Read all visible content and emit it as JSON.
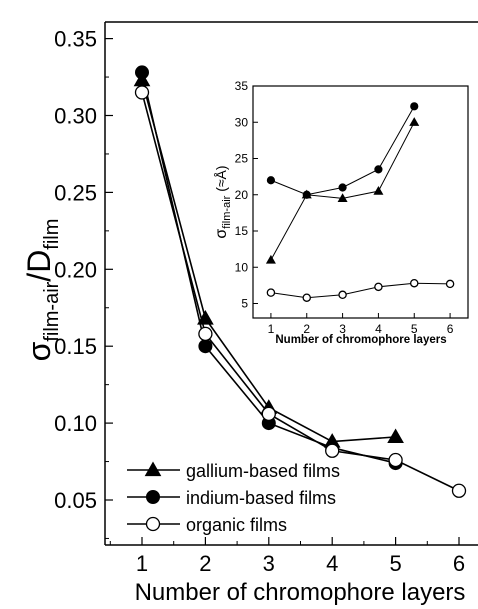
{
  "chart_data": [
    {
      "type": "line",
      "xlabel": "Number of chromophore layers",
      "ylabel_main": "σ",
      "ylabel_sub1": "film-air",
      "ylabel_mid": "/D",
      "ylabel_sub2": "film",
      "xlim": [
        0.3,
        6.3
      ],
      "ylim": [
        0.0167,
        0.35
      ],
      "xticks": [
        1,
        2,
        3,
        4,
        5,
        6
      ],
      "yticks": [
        0.05,
        0.1,
        0.15,
        0.2,
        0.25,
        0.3,
        0.35
      ],
      "ytick_labels": [
        "0.05",
        "0.10",
        "0.15",
        "0.20",
        "0.25",
        "0.30",
        "0.35"
      ],
      "legend_position": "bottom-left",
      "series": [
        {
          "name": "gallium-based films",
          "marker": "triangle",
          "x": [
            1,
            2,
            3,
            4,
            5
          ],
          "y": [
            0.323,
            0.168,
            0.11,
            0.088,
            0.091
          ]
        },
        {
          "name": "indium-based films",
          "marker": "filled-circle",
          "x": [
            1,
            2,
            3,
            4,
            5
          ],
          "y": [
            0.328,
            0.15,
            0.1,
            0.084,
            0.074
          ]
        },
        {
          "name": "organic films",
          "marker": "open-circle",
          "x": [
            1,
            2,
            3,
            4,
            5,
            6
          ],
          "y": [
            0.315,
            0.158,
            0.106,
            0.082,
            0.076,
            0.056
          ]
        }
      ]
    },
    {
      "type": "line",
      "role": "inset",
      "xlabel": "Number of chromophore layers",
      "ylabel_main": "σ",
      "ylabel_sub": "film-air",
      "ylabel_unit": " (≈Å)",
      "xlim": [
        0.5,
        6.5
      ],
      "ylim": [
        3,
        35
      ],
      "xticks": [
        1,
        2,
        3,
        4,
        5,
        6
      ],
      "yticks": [
        5,
        10,
        15,
        20,
        25,
        30,
        35
      ],
      "series": [
        {
          "marker": "triangle",
          "x": [
            1,
            2,
            3,
            4,
            5
          ],
          "y": [
            11,
            20,
            19.5,
            20.5,
            30
          ]
        },
        {
          "marker": "filled-circle",
          "x": [
            1,
            2,
            3,
            4,
            5
          ],
          "y": [
            22,
            20,
            21,
            23.5,
            32.2
          ]
        },
        {
          "marker": "open-circle",
          "x": [
            1,
            2,
            3,
            4,
            5,
            6
          ],
          "y": [
            6.5,
            5.8,
            6.2,
            7.3,
            7.8,
            7.7
          ]
        }
      ]
    }
  ]
}
